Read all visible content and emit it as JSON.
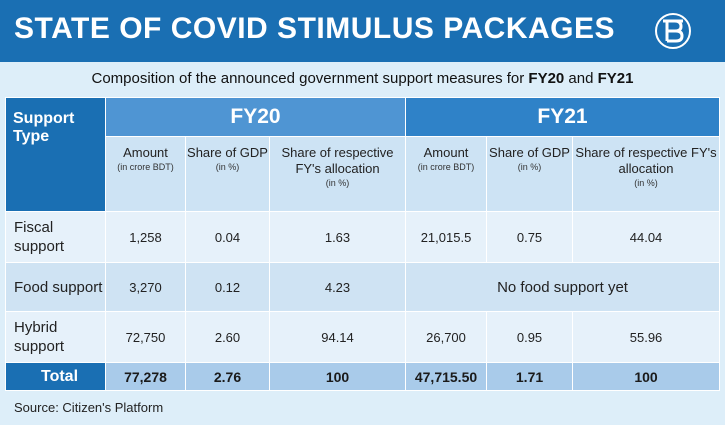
{
  "banner": {
    "title": "STATE OF COVID STIMULUS PACKAGES"
  },
  "subtitle": {
    "text_before": "Composition of the announced government support measures for ",
    "fy20": "FY20",
    "and": " and ",
    "fy21": "FY21"
  },
  "table": {
    "type_header": "Support Type",
    "years": [
      "FY20",
      "FY21"
    ],
    "columns": [
      {
        "label": "Amount",
        "unit": "(in crore BDT)"
      },
      {
        "label": "Share of GDP",
        "unit": "(in %)"
      },
      {
        "label": "Share of respective FY's allocation",
        "unit": "(in %)"
      }
    ],
    "rows": [
      {
        "label": "Fiscal support",
        "fy20": [
          "1,258",
          "0.04",
          "1.63"
        ],
        "fy21": [
          "21,015.5",
          "0.75",
          "44.04"
        ]
      },
      {
        "label": "Food support",
        "fy20": [
          "3,270",
          "0.12",
          "4.23"
        ],
        "fy21_note": "No food support yet"
      },
      {
        "label": "Hybrid support",
        "fy20": [
          "72,750",
          "2.60",
          "94.14"
        ],
        "fy21": [
          "26,700",
          "0.95",
          "55.96"
        ]
      }
    ],
    "total": {
      "label": "Total",
      "fy20": [
        "77,278",
        "2.76",
        "100"
      ],
      "fy21": [
        "47,715.50",
        "1.71",
        "100"
      ]
    }
  },
  "source": "Source: Citizen's Platform",
  "colors": {
    "banner": "#1a6fb3",
    "fy20_header": "#4f95d3",
    "fy21_header": "#2f82c8",
    "background": "#ddeef9"
  },
  "logo": {
    "icon": "bangla-b-logo-icon"
  }
}
